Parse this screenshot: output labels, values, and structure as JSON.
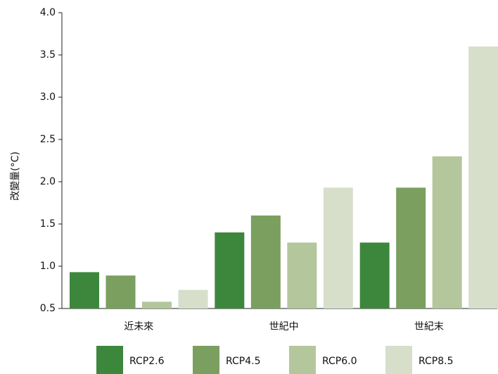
{
  "chart_data": {
    "type": "bar",
    "y_label": "改變量(°C)",
    "categories": [
      "近未來",
      "世紀中",
      "世紀末"
    ],
    "series": [
      {
        "name": "RCP2.6",
        "color": "#3d873d",
        "values": [
          0.93,
          1.4,
          1.28
        ]
      },
      {
        "name": "RCP4.5",
        "color": "#7a9f5f",
        "values": [
          0.89,
          1.6,
          1.93
        ]
      },
      {
        "name": "RCP6.0",
        "color": "#b4c69c",
        "values": [
          0.58,
          1.28,
          2.3
        ]
      },
      {
        "name": "RCP8.5",
        "color": "#d7dfcb",
        "values": [
          0.72,
          1.93,
          3.6
        ]
      }
    ],
    "ylim": [
      0.5,
      4.0
    ],
    "yticks": [
      0.5,
      {
        "value": 1.0,
        "label": "1.0"
      },
      1.5,
      {
        "value": 2.0,
        "label": "2.0"
      },
      2.5,
      {
        "value": 3.0,
        "label": "3.0"
      },
      3.5,
      {
        "value": 4.0,
        "label": "4.0"
      }
    ],
    "legend": "bottom"
  }
}
